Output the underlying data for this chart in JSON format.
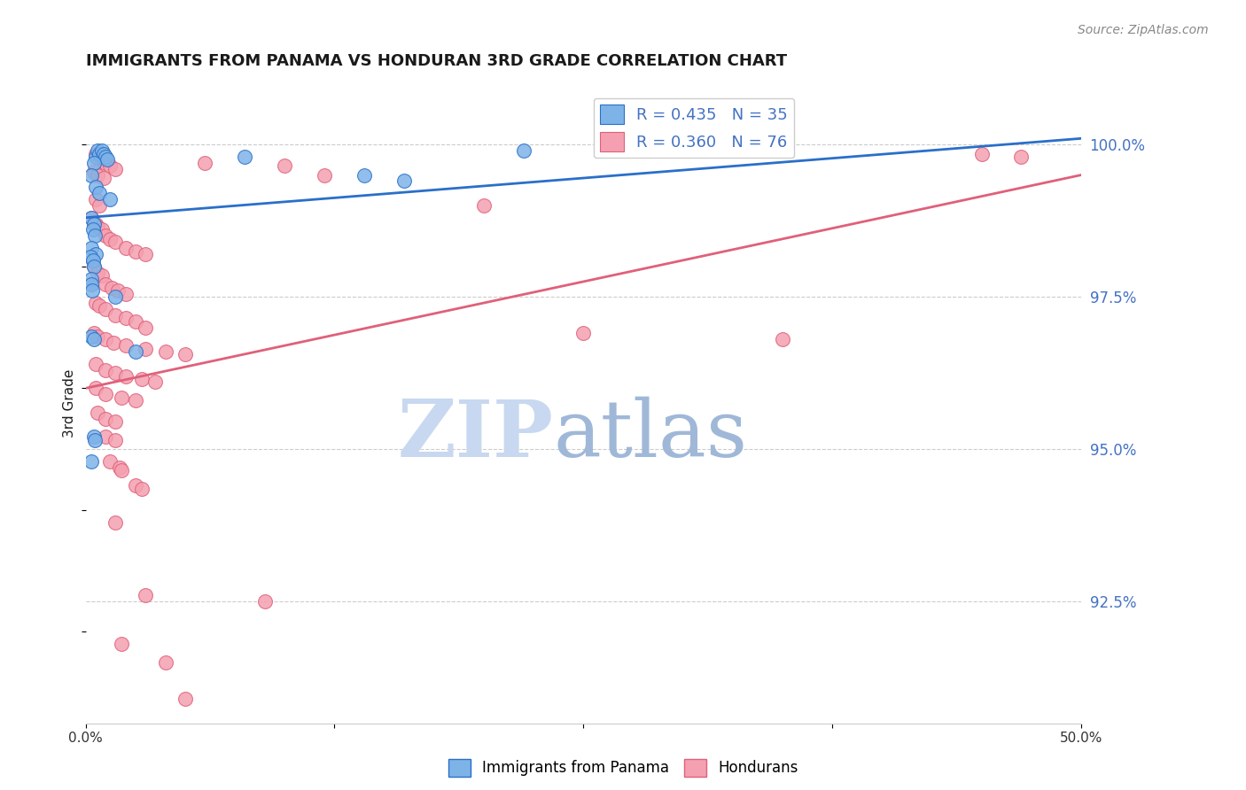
{
  "title": "IMMIGRANTS FROM PANAMA VS HONDURAN 3RD GRADE CORRELATION CHART",
  "source": "Source: ZipAtlas.com",
  "ylabel": "3rd Grade",
  "right_yticks": [
    92.5,
    95.0,
    97.5,
    100.0
  ],
  "right_yticklabels": [
    "92.5%",
    "95.0%",
    "97.5%",
    "100.0%"
  ],
  "xlim": [
    0.0,
    50.0
  ],
  "ylim": [
    90.5,
    101.0
  ],
  "legend_blue_r": "R = 0.435",
  "legend_blue_n": "N = 35",
  "legend_pink_r": "R = 0.360",
  "legend_pink_n": "N = 76",
  "label_panama": "Immigrants from Panama",
  "label_honduran": "Hondurans",
  "blue_color": "#7EB3E8",
  "pink_color": "#F4A0B0",
  "blue_line_color": "#2A6FC9",
  "pink_line_color": "#E0607A",
  "blue_scatter": [
    [
      0.5,
      99.8
    ],
    [
      0.6,
      99.9
    ],
    [
      0.7,
      99.85
    ],
    [
      0.8,
      99.9
    ],
    [
      0.9,
      99.85
    ],
    [
      1.0,
      99.8
    ],
    [
      1.1,
      99.75
    ],
    [
      0.4,
      99.7
    ],
    [
      0.3,
      99.5
    ],
    [
      0.5,
      99.3
    ],
    [
      0.7,
      99.2
    ],
    [
      1.2,
      99.1
    ],
    [
      0.3,
      98.8
    ],
    [
      0.4,
      98.7
    ],
    [
      0.35,
      98.6
    ],
    [
      0.45,
      98.5
    ],
    [
      0.3,
      98.3
    ],
    [
      0.5,
      98.2
    ],
    [
      0.25,
      98.15
    ],
    [
      0.35,
      98.1
    ],
    [
      0.4,
      98.0
    ],
    [
      0.3,
      97.8
    ],
    [
      0.28,
      97.7
    ],
    [
      0.32,
      97.6
    ],
    [
      1.5,
      97.5
    ],
    [
      0.3,
      96.85
    ],
    [
      0.4,
      96.8
    ],
    [
      2.5,
      96.6
    ],
    [
      0.4,
      95.2
    ],
    [
      0.45,
      95.15
    ],
    [
      0.3,
      94.8
    ],
    [
      8.0,
      99.8
    ],
    [
      14.0,
      99.5
    ],
    [
      16.0,
      99.4
    ],
    [
      22.0,
      99.9
    ]
  ],
  "pink_scatter": [
    [
      0.5,
      99.85
    ],
    [
      0.8,
      99.75
    ],
    [
      1.0,
      99.7
    ],
    [
      1.2,
      99.65
    ],
    [
      1.5,
      99.6
    ],
    [
      0.4,
      99.55
    ],
    [
      0.6,
      99.5
    ],
    [
      0.9,
      99.45
    ],
    [
      0.5,
      99.1
    ],
    [
      0.7,
      99.0
    ],
    [
      0.3,
      98.8
    ],
    [
      0.5,
      98.7
    ],
    [
      0.6,
      98.65
    ],
    [
      0.8,
      98.6
    ],
    [
      1.0,
      98.5
    ],
    [
      1.2,
      98.45
    ],
    [
      1.5,
      98.4
    ],
    [
      2.0,
      98.3
    ],
    [
      2.5,
      98.25
    ],
    [
      3.0,
      98.2
    ],
    [
      0.4,
      98.0
    ],
    [
      0.6,
      97.9
    ],
    [
      0.8,
      97.85
    ],
    [
      1.0,
      97.7
    ],
    [
      1.3,
      97.65
    ],
    [
      1.6,
      97.6
    ],
    [
      2.0,
      97.55
    ],
    [
      0.5,
      97.4
    ],
    [
      0.7,
      97.35
    ],
    [
      1.0,
      97.3
    ],
    [
      1.5,
      97.2
    ],
    [
      2.0,
      97.15
    ],
    [
      2.5,
      97.1
    ],
    [
      3.0,
      97.0
    ],
    [
      0.4,
      96.9
    ],
    [
      0.6,
      96.85
    ],
    [
      1.0,
      96.8
    ],
    [
      1.4,
      96.75
    ],
    [
      2.0,
      96.7
    ],
    [
      3.0,
      96.65
    ],
    [
      4.0,
      96.6
    ],
    [
      5.0,
      96.55
    ],
    [
      0.5,
      96.4
    ],
    [
      1.0,
      96.3
    ],
    [
      1.5,
      96.25
    ],
    [
      2.0,
      96.2
    ],
    [
      2.8,
      96.15
    ],
    [
      3.5,
      96.1
    ],
    [
      0.5,
      96.0
    ],
    [
      1.0,
      95.9
    ],
    [
      1.8,
      95.85
    ],
    [
      2.5,
      95.8
    ],
    [
      0.6,
      95.6
    ],
    [
      1.0,
      95.5
    ],
    [
      1.5,
      95.45
    ],
    [
      1.0,
      95.2
    ],
    [
      1.5,
      95.15
    ],
    [
      1.2,
      94.8
    ],
    [
      1.7,
      94.7
    ],
    [
      1.8,
      94.65
    ],
    [
      2.5,
      94.4
    ],
    [
      2.8,
      94.35
    ],
    [
      1.5,
      93.8
    ],
    [
      3.0,
      92.6
    ],
    [
      9.0,
      92.5
    ],
    [
      1.8,
      91.8
    ],
    [
      4.0,
      91.5
    ],
    [
      5.0,
      90.9
    ],
    [
      6.0,
      99.7
    ],
    [
      10.0,
      99.65
    ],
    [
      12.0,
      99.5
    ],
    [
      20.0,
      99.0
    ],
    [
      25.0,
      96.9
    ],
    [
      35.0,
      96.8
    ],
    [
      45.0,
      99.85
    ],
    [
      47.0,
      99.8
    ]
  ],
  "blue_line_x": [
    0.0,
    50.0
  ],
  "blue_line_y": [
    98.8,
    100.1
  ],
  "pink_line_x": [
    0.0,
    50.0
  ],
  "pink_line_y": [
    96.0,
    99.5
  ],
  "watermark_zip": "ZIP",
  "watermark_atlas": "atlas",
  "watermark_color_zip": "#C8D8F0",
  "watermark_color_atlas": "#A0B8D8",
  "background_color": "#FFFFFF",
  "legend_text_color": "#4472C4",
  "ytick_color": "#4472C4",
  "title_color": "#1A1A1A",
  "source_color": "#888888",
  "grid_color": "#CCCCCC",
  "xtick_color": "#333333"
}
